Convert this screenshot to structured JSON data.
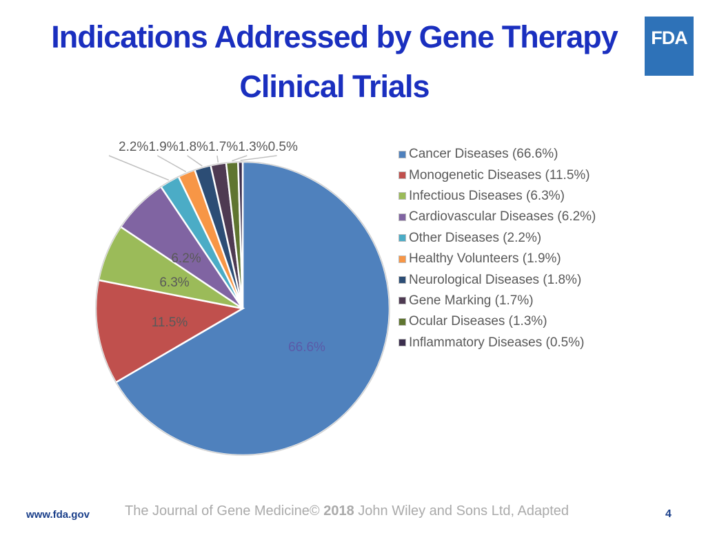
{
  "slide": {
    "title": "Indications Addressed by Gene Therapy Clinical Trials",
    "logo_text": "FDA",
    "footer_url": "www.fda.gov",
    "footer_credit_pre": "The Journal of Gene Medicine© ",
    "footer_credit_year": "2018",
    "footer_credit_post": " John Wiley and Sons Ltd, Adapted",
    "page_number": "4"
  },
  "chart_data": {
    "type": "pie",
    "start_angle": "12 o'clock",
    "direction": "clockwise",
    "legend_placement": "right",
    "slices": [
      {
        "label": "Cancer Diseases",
        "legend": "Cancer Diseases (66.6%)",
        "value": 66.6,
        "data_label": "66.6%",
        "color": "#4f81bd",
        "label_position": "inside"
      },
      {
        "label": "Monogenetic Diseases",
        "legend": "Monogenetic Diseases (11.5%)",
        "value": 11.5,
        "data_label": "11.5%",
        "color": "#c0504d",
        "label_position": "inside"
      },
      {
        "label": "Infectious Diseases",
        "legend": "Infectious Diseases (6.3%)",
        "value": 6.3,
        "data_label": "6.3%",
        "color": "#9bbb59",
        "label_position": "inside"
      },
      {
        "label": "Cardiovascular Diseases",
        "legend": "Cardiovascular Diseases (6.2%)",
        "value": 6.2,
        "data_label": "6.2%",
        "color": "#8064a2",
        "label_position": "inside"
      },
      {
        "label": "Other Diseases",
        "legend": "Other Diseases (2.2%)",
        "value": 2.2,
        "data_label": "2.2%",
        "color": "#4bacc6",
        "label_position": "outside"
      },
      {
        "label": "Healthy Volunteers",
        "legend": "Healthy Volunteers (1.9%)",
        "value": 1.9,
        "data_label": "1.9%",
        "color": "#f79646",
        "label_position": "outside"
      },
      {
        "label": "Neurological Diseases",
        "legend": "Neurological Diseases (1.8%)",
        "value": 1.8,
        "data_label": "1.8%",
        "color": "#2c4d75",
        "label_position": "outside"
      },
      {
        "label": "Gene Marking",
        "legend": "Gene Marking (1.7%)",
        "value": 1.7,
        "data_label": "1.7%",
        "color": "#4e3a52",
        "label_position": "outside"
      },
      {
        "label": "Ocular Diseases",
        "legend": "Ocular Diseases (1.3%)",
        "value": 1.3,
        "data_label": "1.3%",
        "color": "#5f7530",
        "label_position": "outside"
      },
      {
        "label": "Inflammatory Diseases",
        "legend": "Inflammatory Diseases (0.5%)",
        "value": 0.5,
        "data_label": "0.5%",
        "color": "#3b2e4e",
        "label_position": "outside"
      }
    ]
  }
}
